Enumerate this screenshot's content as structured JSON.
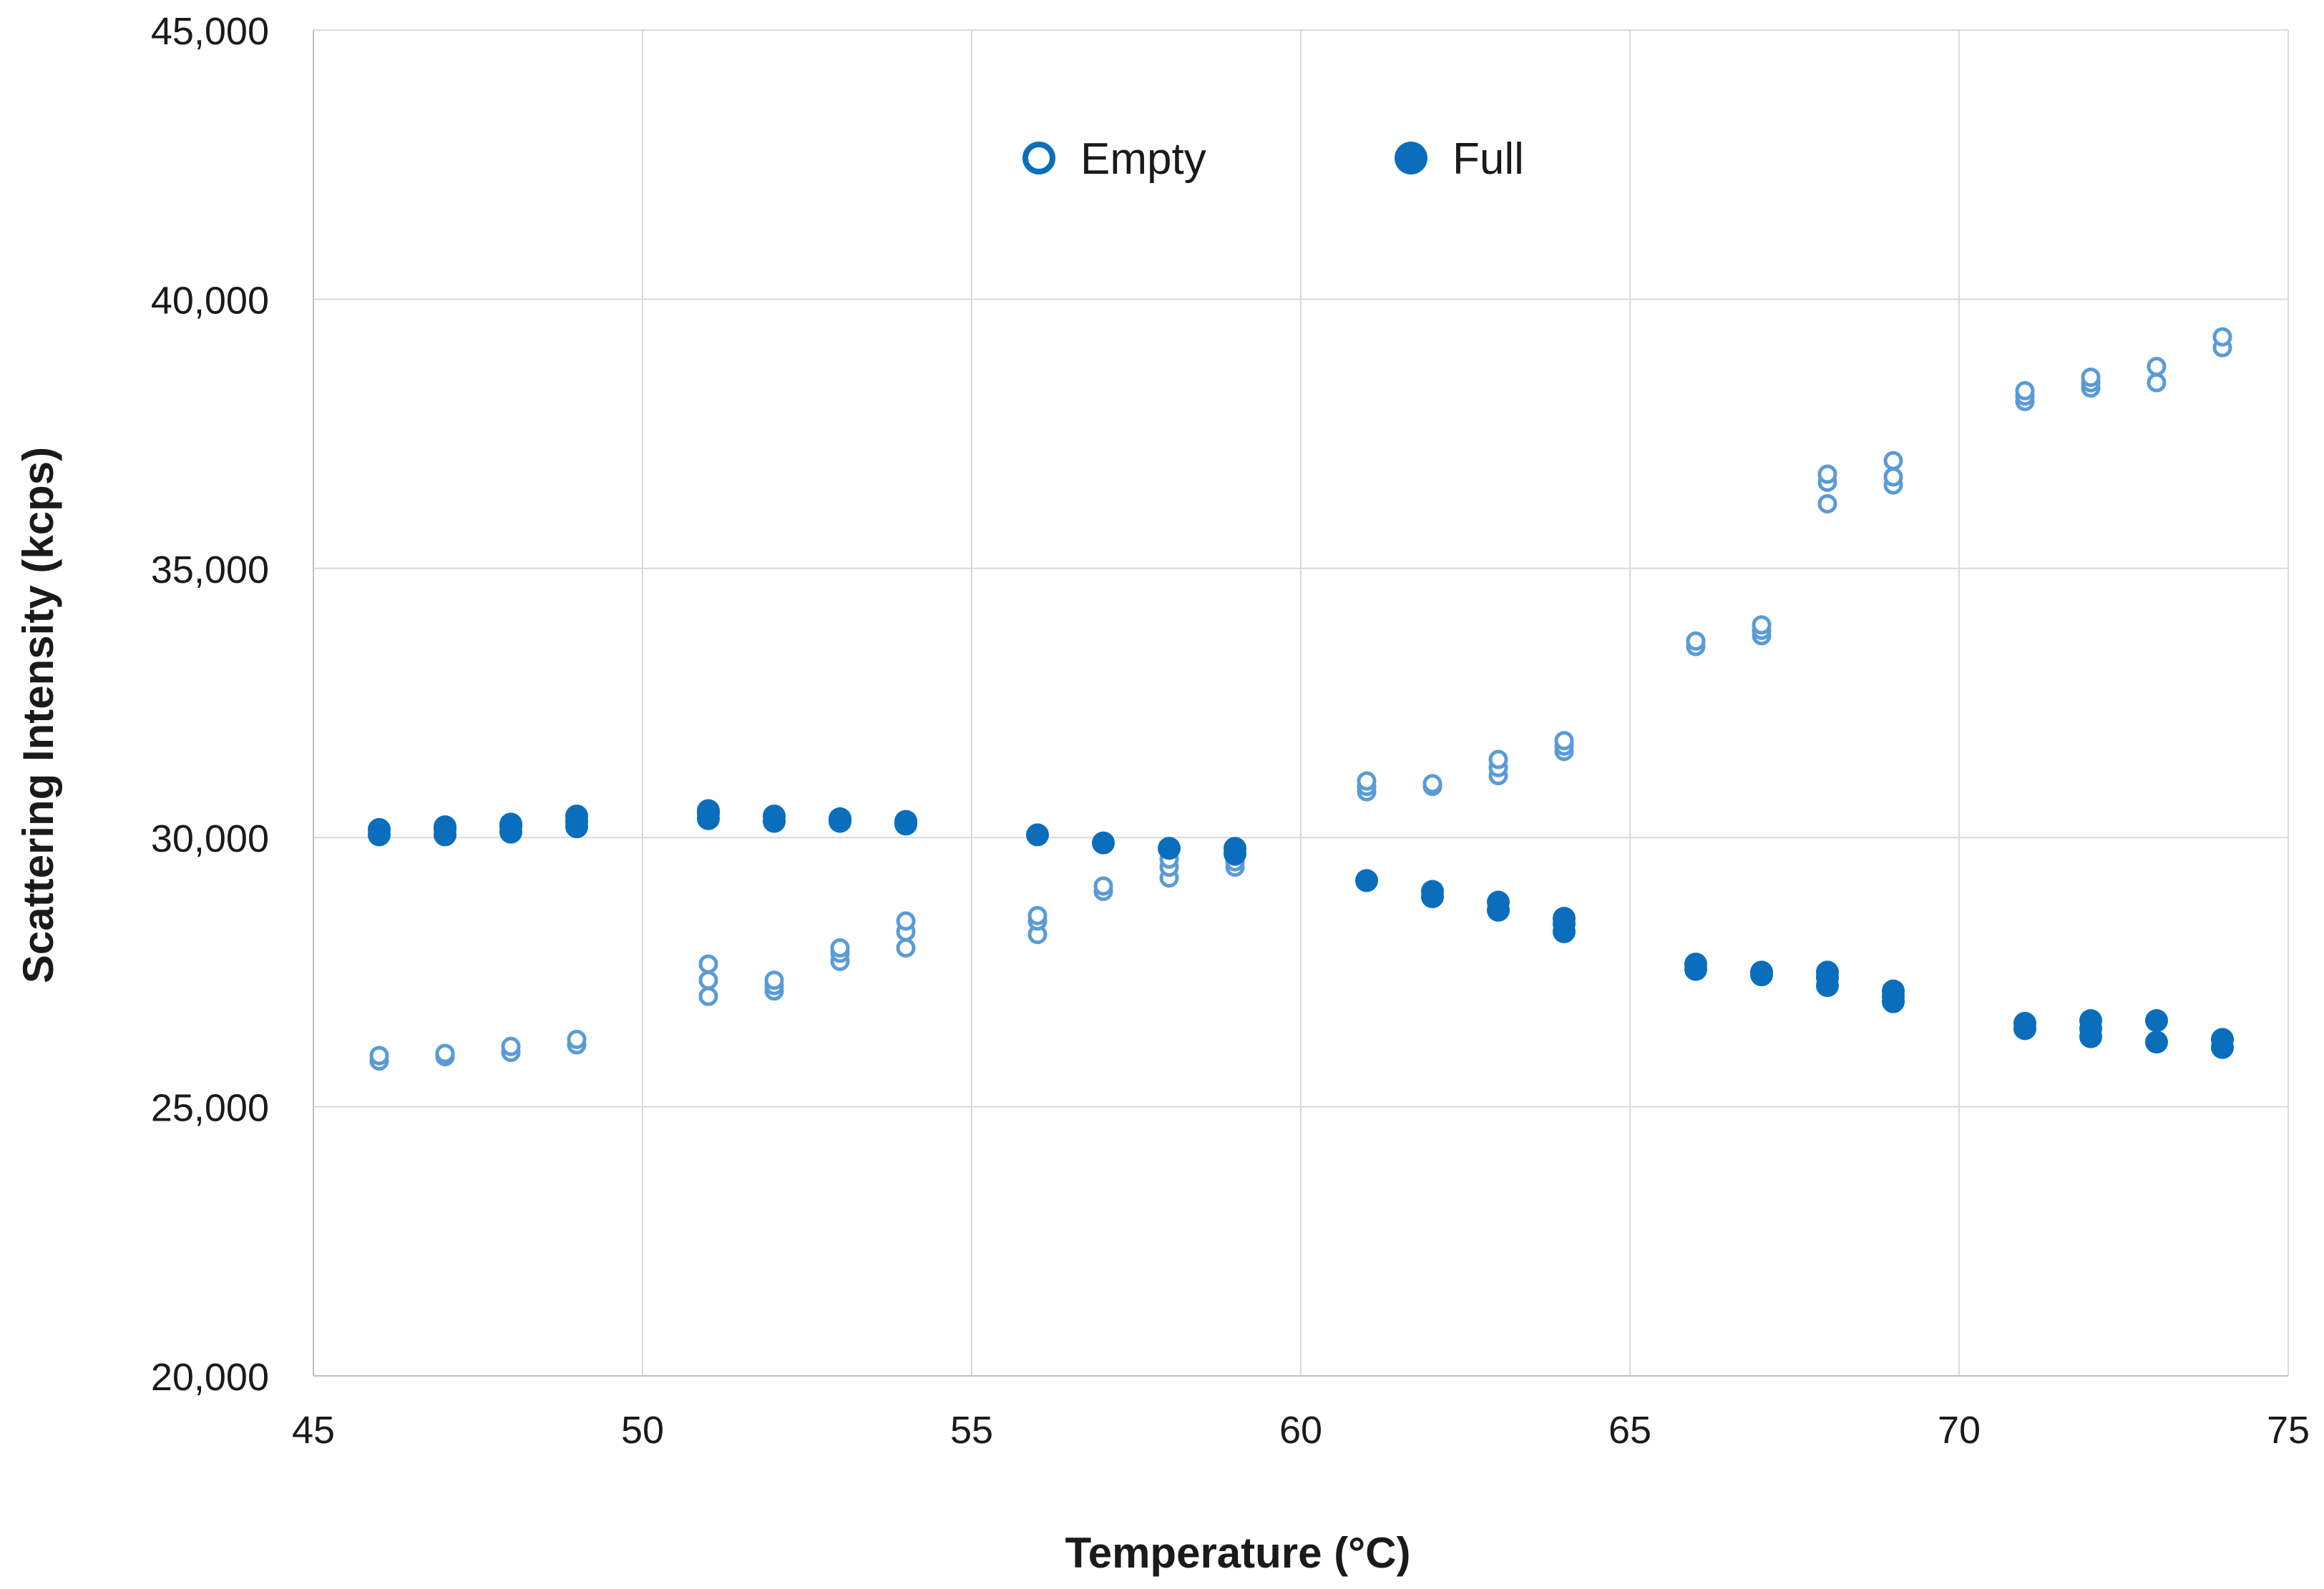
{
  "chart_data": {
    "type": "scatter",
    "xlabel": "Temperature (°C)",
    "ylabel": "Scattering Intensity (kcps)",
    "xlim": [
      45,
      75
    ],
    "ylim": [
      20000,
      45000
    ],
    "x_ticks": [
      "45",
      "50",
      "55",
      "60",
      "65",
      "70",
      "75"
    ],
    "y_ticks": [
      "20,000",
      "25,000",
      "30,000",
      "35,000",
      "40,000",
      "45,000"
    ],
    "grid": true,
    "legend_position": "top-center",
    "colors": {
      "empty": "#5b9bd5",
      "full": "#0a6ebd",
      "grid": "#d9d9d9"
    },
    "series": [
      {
        "name": "Empty",
        "marker": "hollow-circle",
        "points": [
          [
            46,
            25850
          ],
          [
            46,
            25950
          ],
          [
            47,
            25930
          ],
          [
            47,
            25990
          ],
          [
            48,
            26010
          ],
          [
            48,
            26120
          ],
          [
            49,
            26150
          ],
          [
            49,
            26250
          ],
          [
            51,
            27050
          ],
          [
            51,
            27350
          ],
          [
            51,
            27650
          ],
          [
            52,
            27150
          ],
          [
            52,
            27250
          ],
          [
            52,
            27350
          ],
          [
            53,
            27700
          ],
          [
            53,
            27850
          ],
          [
            53,
            27950
          ],
          [
            54,
            27950
          ],
          [
            54,
            28250
          ],
          [
            54,
            28450
          ],
          [
            56,
            28200
          ],
          [
            56,
            28450
          ],
          [
            56,
            28550
          ],
          [
            57,
            29000
          ],
          [
            57,
            29100
          ],
          [
            58,
            29250
          ],
          [
            58,
            29450
          ],
          [
            58,
            29600
          ],
          [
            59,
            29450
          ],
          [
            59,
            29550
          ],
          [
            59,
            29650
          ],
          [
            61,
            30850
          ],
          [
            61,
            30950
          ],
          [
            61,
            31050
          ],
          [
            62,
            30950
          ],
          [
            62,
            31000
          ],
          [
            63,
            31150
          ],
          [
            63,
            31300
          ],
          [
            63,
            31450
          ],
          [
            64,
            31600
          ],
          [
            64,
            31700
          ],
          [
            64,
            31800
          ],
          [
            66,
            33550
          ],
          [
            66,
            33650
          ],
          [
            67,
            33750
          ],
          [
            67,
            33850
          ],
          [
            67,
            33950
          ],
          [
            68,
            36200
          ],
          [
            68,
            36600
          ],
          [
            68,
            36750
          ],
          [
            69,
            36550
          ],
          [
            69,
            36700
          ],
          [
            69,
            37000
          ],
          [
            71,
            38100
          ],
          [
            71,
            38200
          ],
          [
            71,
            38300
          ],
          [
            72,
            38350
          ],
          [
            72,
            38450
          ],
          [
            72,
            38550
          ],
          [
            73,
            38450
          ],
          [
            73,
            38750
          ],
          [
            74,
            39100
          ],
          [
            74,
            39300
          ]
        ]
      },
      {
        "name": "Full",
        "marker": "filled-circle",
        "points": [
          [
            46,
            30050
          ],
          [
            46,
            30150
          ],
          [
            47,
            30050
          ],
          [
            47,
            30150
          ],
          [
            47,
            30200
          ],
          [
            48,
            30100
          ],
          [
            48,
            30200
          ],
          [
            48,
            30250
          ],
          [
            49,
            30200
          ],
          [
            49,
            30300
          ],
          [
            49,
            30400
          ],
          [
            51,
            30350
          ],
          [
            51,
            30450
          ],
          [
            51,
            30500
          ],
          [
            52,
            30300
          ],
          [
            52,
            30400
          ],
          [
            53,
            30300
          ],
          [
            53,
            30350
          ],
          [
            54,
            30250
          ],
          [
            54,
            30300
          ],
          [
            56,
            30050
          ],
          [
            57,
            29900
          ],
          [
            58,
            29800
          ],
          [
            59,
            29700
          ],
          [
            59,
            29800
          ],
          [
            61,
            29200
          ],
          [
            62,
            28900
          ],
          [
            62,
            29000
          ],
          [
            63,
            28650
          ],
          [
            63,
            28800
          ],
          [
            64,
            28250
          ],
          [
            64,
            28400
          ],
          [
            64,
            28500
          ],
          [
            66,
            27550
          ],
          [
            66,
            27650
          ],
          [
            67,
            27450
          ],
          [
            67,
            27500
          ],
          [
            68,
            27250
          ],
          [
            68,
            27400
          ],
          [
            68,
            27500
          ],
          [
            69,
            26950
          ],
          [
            69,
            27050
          ],
          [
            69,
            27150
          ],
          [
            71,
            26450
          ],
          [
            71,
            26550
          ],
          [
            72,
            26300
          ],
          [
            72,
            26450
          ],
          [
            72,
            26600
          ],
          [
            73,
            26200
          ],
          [
            73,
            26600
          ],
          [
            74,
            26100
          ],
          [
            74,
            26250
          ]
        ]
      }
    ]
  }
}
